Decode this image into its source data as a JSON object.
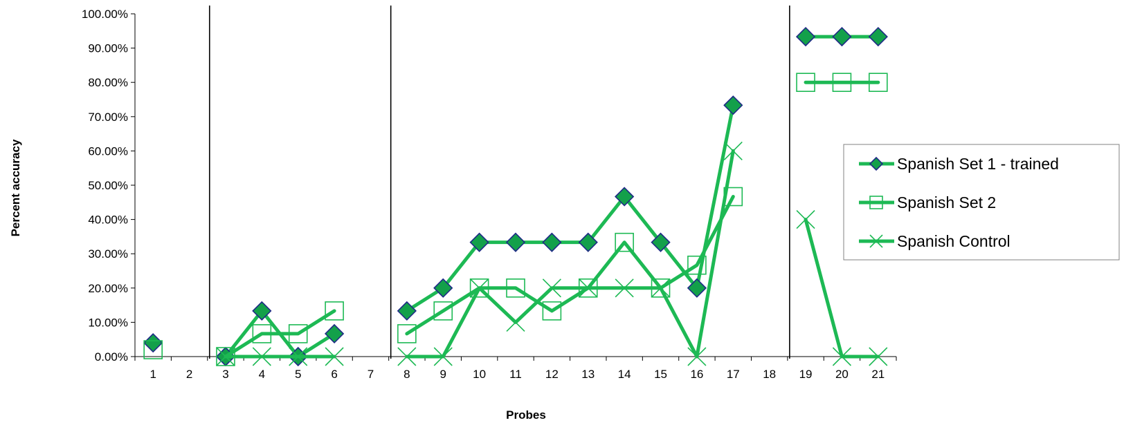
{
  "chart_data": {
    "type": "line",
    "xlabel": "Probes",
    "ylabel": "Percent accuracy",
    "ylim": [
      0,
      1
    ],
    "y_ticks": [
      "0.00%",
      "10.00%",
      "20.00%",
      "30.00%",
      "40.00%",
      "50.00%",
      "60.00%",
      "70.00%",
      "80.00%",
      "90.00%",
      "100.00%"
    ],
    "categories": [
      "1",
      "2",
      "3",
      "4",
      "5",
      "6",
      "7",
      "8",
      "9",
      "10",
      "11",
      "12",
      "13",
      "14",
      "15",
      "16",
      "17",
      "18",
      "19",
      "20",
      "21"
    ],
    "phase_lines_after": [
      "2",
      "7",
      "18"
    ],
    "grid": false,
    "legend_position": "right",
    "colors": {
      "line": "#1db954",
      "marker_fill": "#13a04a",
      "diamond_edge": "#1f2a86",
      "phase_line": "#000000",
      "legend_border": "#808080"
    },
    "series": [
      {
        "name": "Spanish Set 1 - trained",
        "marker": "diamond",
        "values": [
          0.04,
          null,
          0.0,
          0.1333,
          0.0,
          0.0667,
          null,
          0.1333,
          0.2,
          0.3333,
          0.3333,
          0.3333,
          0.3333,
          0.4667,
          0.3333,
          0.2,
          0.7333,
          null,
          0.9333,
          0.9333,
          0.9333
        ]
      },
      {
        "name": "Spanish Set 2",
        "marker": "square",
        "values": [
          0.02,
          null,
          0.0,
          0.0667,
          0.0667,
          0.1333,
          null,
          0.0667,
          0.1333,
          0.2,
          0.2,
          0.1333,
          0.2,
          0.3333,
          0.2,
          0.2667,
          0.4667,
          null,
          0.8,
          0.8,
          0.8
        ]
      },
      {
        "name": "Spanish Control",
        "marker": "x",
        "values": [
          null,
          null,
          0.0,
          0.0,
          0.0,
          0.0,
          null,
          0.0,
          0.0,
          0.2,
          0.1,
          0.2,
          0.2,
          0.2,
          0.2,
          0.0,
          0.6,
          null,
          0.4,
          0.0,
          0.0
        ]
      }
    ]
  }
}
